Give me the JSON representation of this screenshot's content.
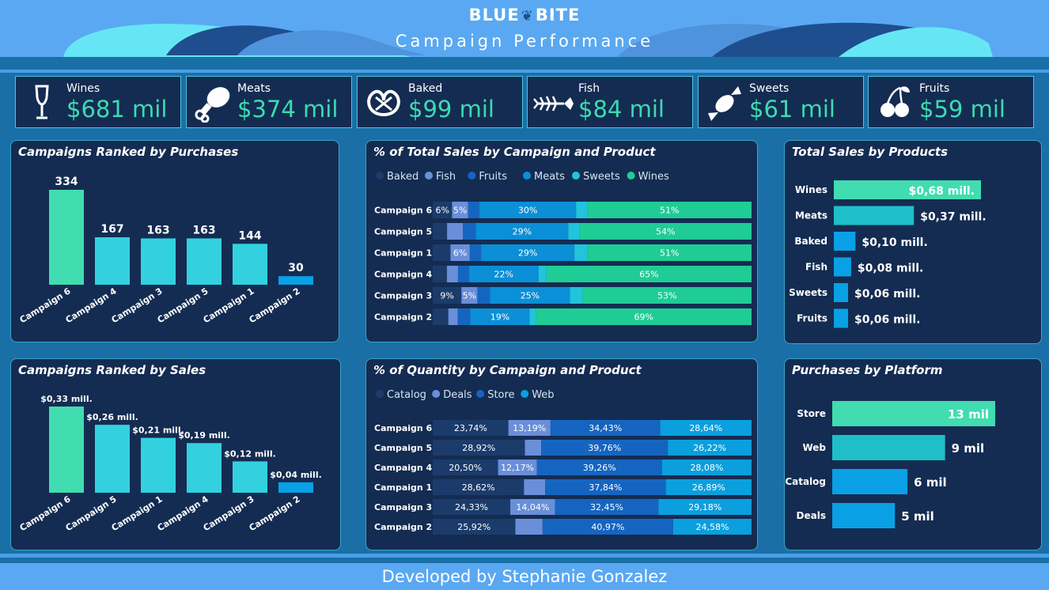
{
  "header": {
    "brand_left": "BLUE",
    "brand_right": "BITE",
    "title": "Campaign Performance"
  },
  "kpis": [
    {
      "label": "Wines",
      "value": "$681 mil",
      "icon": "wine-glass-icon"
    },
    {
      "label": "Meats",
      "value": "$374 mil",
      "icon": "meat-leg-icon"
    },
    {
      "label": "Baked",
      "value": "$99 mil",
      "icon": "pretzel-icon"
    },
    {
      "label": "Fish",
      "value": "$84 mil",
      "icon": "fish-bone-icon"
    },
    {
      "label": "Sweets",
      "value": "$61 mil",
      "icon": "candy-icon"
    },
    {
      "label": "Fruits",
      "value": "$59 mil",
      "icon": "cherries-icon"
    }
  ],
  "footer": {
    "text": "Developed by Stephanie Gonzalez"
  },
  "colors": {
    "wines": "#1fcc95",
    "meats": "#0b8fd6",
    "baked": "#1b3c6b",
    "fish": "#6a8fd8",
    "fruits": "#1565c0",
    "sweets": "#22c3dc",
    "teal": "#41dcb0",
    "cyan": "#33d1e0",
    "blue": "#0aa0e6",
    "catalog": "#1b3c6b",
    "deals": "#6a8fd8",
    "store": "#1565c0",
    "web": "#0b9fde"
  },
  "chart_data": [
    {
      "id": "purchases",
      "type": "bar",
      "title": "Campaigns Ranked by Purchases",
      "categories": [
        "Campaign 6",
        "Campaign 4",
        "Campaign 3",
        "Campaign 5",
        "Campaign 1",
        "Campaign 2"
      ],
      "values": [
        334,
        167,
        163,
        163,
        144,
        30
      ],
      "labels": [
        "334",
        "167",
        "163",
        "163",
        "144",
        "30"
      ],
      "ylim": [
        0,
        334
      ]
    },
    {
      "id": "sales",
      "type": "bar",
      "title": "Campaigns Ranked by Sales",
      "categories": [
        "Campaign 6",
        "Campaign 5",
        "Campaign 1",
        "Campaign 4",
        "Campaign 3",
        "Campaign 2"
      ],
      "values": [
        0.33,
        0.26,
        0.21,
        0.19,
        0.12,
        0.04
      ],
      "labels": [
        "$0,33 mill.",
        "$0,26 mill.",
        "$0,21 mill.",
        "$0,19 mill.",
        "$0,12 mill.",
        "$0,04 mill."
      ],
      "ylim": [
        0,
        0.33
      ]
    },
    {
      "id": "pct_sales",
      "type": "bar",
      "stacked": "100%",
      "orientation": "horizontal",
      "title": "% of Total Sales by Campaign and Product",
      "legend": [
        "Baked",
        "Fish",
        "Fruits",
        "Meats",
        "Sweets",
        "Wines"
      ],
      "categories": [
        "Campaign 6",
        "Campaign 5",
        "Campaign 1",
        "Campaign 4",
        "Campaign 3",
        "Campaign 2"
      ],
      "rows": [
        {
          "values": [
            6,
            5,
            3.5,
            30,
            3.5,
            51
          ],
          "labels": [
            "6%",
            "5%",
            "",
            "30%",
            "",
            "51%"
          ]
        },
        {
          "values": [
            4.5,
            5,
            4,
            29,
            3.5,
            54
          ],
          "labels": [
            "",
            "",
            "",
            "29%",
            "",
            "54%"
          ]
        },
        {
          "values": [
            5.5,
            6,
            3.5,
            29,
            4,
            51
          ],
          "labels": [
            "",
            "6%",
            "",
            "29%",
            "",
            "51%"
          ]
        },
        {
          "values": [
            4.5,
            3.5,
            3.5,
            22,
            2.5,
            65
          ],
          "labels": [
            "",
            "",
            "",
            "22%",
            "",
            "65%"
          ]
        },
        {
          "values": [
            9,
            5,
            4,
            25,
            4,
            53
          ],
          "labels": [
            "9%",
            "5%",
            "",
            "25%",
            "",
            "53%"
          ]
        },
        {
          "values": [
            5,
            3,
            4,
            19,
            2,
            69
          ],
          "labels": [
            "",
            "",
            "",
            "19%",
            "",
            "69%"
          ]
        }
      ]
    },
    {
      "id": "pct_qty",
      "type": "bar",
      "stacked": "100%",
      "orientation": "horizontal",
      "title": "% of Quantity by Campaign and Product",
      "legend": [
        "Catalog",
        "Deals",
        "Store",
        "Web"
      ],
      "categories": [
        "Campaign 6",
        "Campaign 5",
        "Campaign 4",
        "Campaign 1",
        "Campaign 3",
        "Campaign 2"
      ],
      "rows": [
        {
          "values": [
            23.74,
            13.19,
            34.43,
            28.64
          ],
          "labels": [
            "23,74%",
            "13,19%",
            "34,43%",
            "28,64%"
          ]
        },
        {
          "values": [
            28.92,
            5.1,
            39.76,
            26.22
          ],
          "labels": [
            "28,92%",
            "",
            "39,76%",
            "26,22%"
          ]
        },
        {
          "values": [
            20.5,
            12.17,
            39.26,
            28.08
          ],
          "labels": [
            "20,50%",
            "12,17%",
            "39,26%",
            "28,08%"
          ]
        },
        {
          "values": [
            28.62,
            6.65,
            37.84,
            26.89
          ],
          "labels": [
            "28,62%",
            "",
            "37,84%",
            "26,89%"
          ]
        },
        {
          "values": [
            24.33,
            14.04,
            32.45,
            29.18
          ],
          "labels": [
            "24,33%",
            "14,04%",
            "32,45%",
            "29,18%"
          ]
        },
        {
          "values": [
            25.92,
            8.53,
            40.97,
            24.58
          ],
          "labels": [
            "25,92%",
            "",
            "40,97%",
            "24,58%"
          ]
        }
      ]
    },
    {
      "id": "products",
      "type": "bar",
      "orientation": "horizontal",
      "title": "Total Sales by Products",
      "categories": [
        "Wines",
        "Meats",
        "Baked",
        "Fish",
        "Sweets",
        "Fruits"
      ],
      "values": [
        0.68,
        0.37,
        0.1,
        0.08,
        0.06,
        0.06
      ],
      "labels": [
        "$0,68 mill.",
        "$0,37 mill.",
        "$0,10 mill.",
        "$0,08 mill.",
        "$0,06 mill.",
        "$0,06 mill."
      ]
    },
    {
      "id": "platform",
      "type": "bar",
      "orientation": "horizontal",
      "title": "Purchases by Platform",
      "categories": [
        "Store",
        "Web",
        "Catalog",
        "Deals"
      ],
      "values": [
        13,
        9,
        6,
        5
      ],
      "labels": [
        "13 mil",
        "9 mil",
        "6 mil",
        "5 mil"
      ]
    }
  ]
}
